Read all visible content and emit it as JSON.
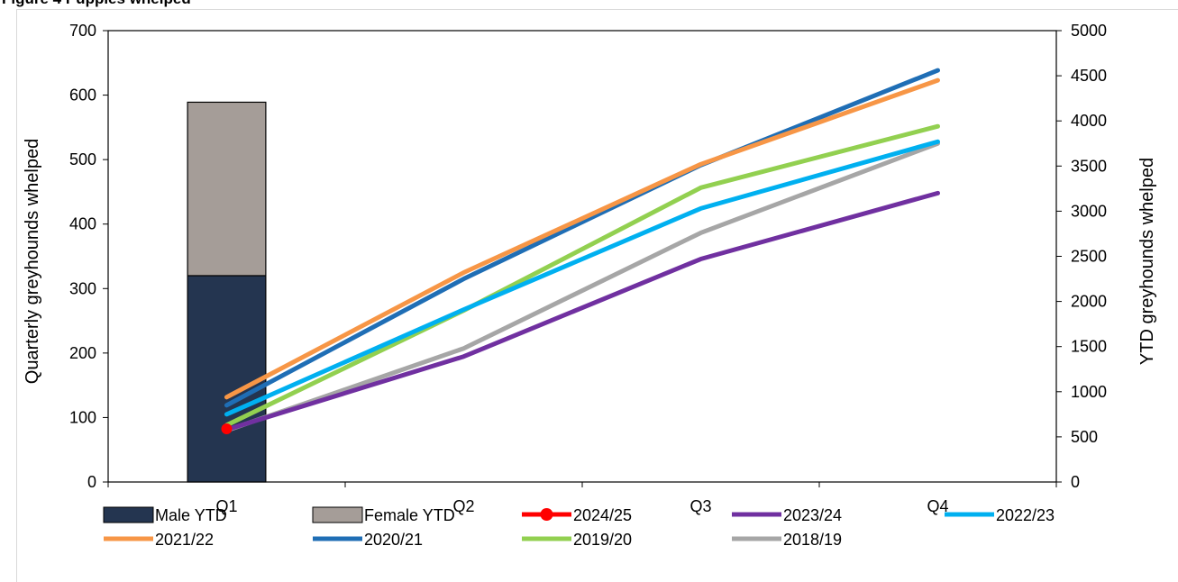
{
  "figure_caption": "Figure 4 Puppies whelped",
  "chart_data": {
    "type": "bar",
    "categories": [
      "Q1",
      "Q2",
      "Q3",
      "Q4"
    ],
    "ylabel": "Quarterly greyhounds whelped",
    "y2label": "YTD greyhounds whelped",
    "ylim": [
      0,
      700
    ],
    "y2lim": [
      0,
      5000
    ],
    "yticks": [
      0,
      100,
      200,
      300,
      400,
      500,
      600,
      700
    ],
    "y2ticks": [
      0,
      500,
      1000,
      1500,
      2000,
      2500,
      3000,
      3500,
      4000,
      4500,
      5000
    ],
    "grid": false,
    "legend_position": "bottom",
    "bars": [
      {
        "name": "Male YTD",
        "color": "#243550",
        "values": [
          320,
          null,
          null,
          null
        ]
      },
      {
        "name": "Female YTD",
        "color": "#a59d98",
        "values": [
          269,
          null,
          null,
          null
        ]
      }
    ],
    "series": [
      {
        "name": "2024/25",
        "color": "#ff0000",
        "marker": "circle",
        "axis": "secondary",
        "values": [
          589,
          null,
          null,
          null
        ]
      },
      {
        "name": "2023/24",
        "color": "#7030a0",
        "axis": "secondary",
        "values": [
          580,
          1390,
          2470,
          3200
        ]
      },
      {
        "name": "2022/23",
        "color": "#00b0f0",
        "axis": "secondary",
        "values": [
          750,
          1910,
          3030,
          3770
        ]
      },
      {
        "name": "2021/22",
        "color": "#f79646",
        "axis": "secondary",
        "values": [
          940,
          2320,
          3520,
          4450
        ]
      },
      {
        "name": "2020/21",
        "color": "#1f6eb5",
        "axis": "secondary",
        "values": [
          850,
          2250,
          3510,
          4560
        ]
      },
      {
        "name": "2019/20",
        "color": "#92d050",
        "axis": "secondary",
        "values": [
          630,
          1900,
          3260,
          3940
        ]
      },
      {
        "name": "2018/19",
        "color": "#a6a6a6",
        "axis": "secondary",
        "values": [
          570,
          1480,
          2760,
          3750
        ]
      }
    ]
  }
}
